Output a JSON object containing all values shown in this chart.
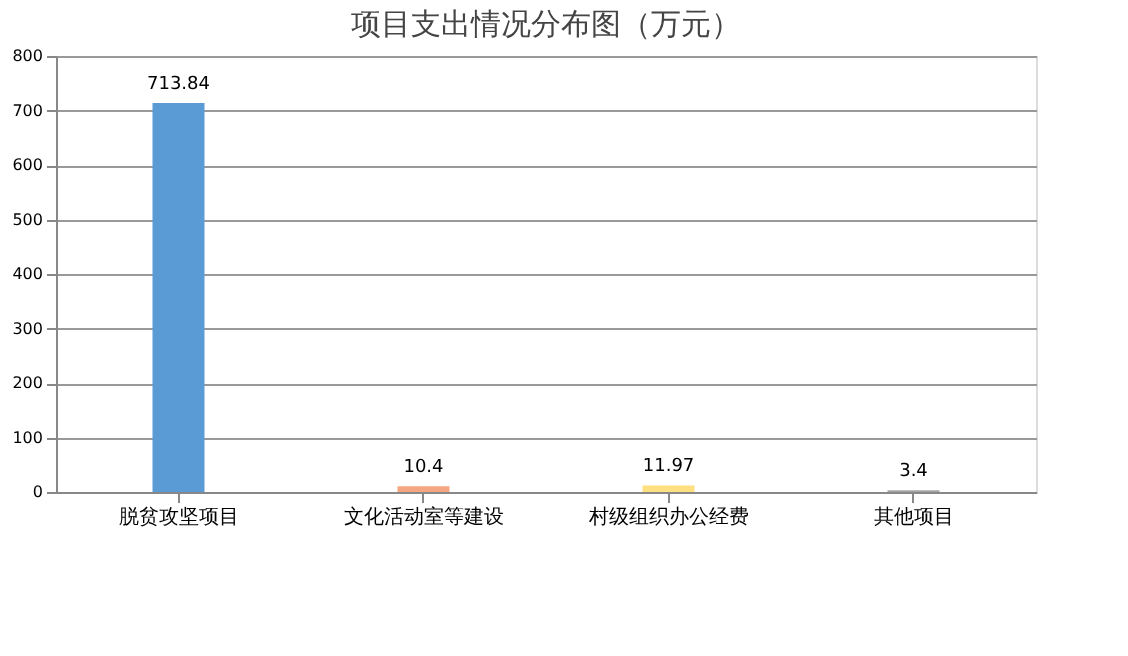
{
  "chart_data": {
    "type": "bar",
    "title": "项目支出情况分布图（万元）",
    "categories": [
      "脱贫攻坚项目",
      "文化活动室等建设",
      "村级组织办公经费",
      "其他项目"
    ],
    "values": [
      713.84,
      10.4,
      11.97,
      3.4
    ],
    "colors": [
      "#5b9bd5",
      "#f4a582",
      "#ffe080",
      "#a5a5a5"
    ],
    "ylim": [
      0,
      800
    ],
    "yticks": [
      0,
      100,
      200,
      300,
      400,
      500,
      600,
      700,
      800
    ],
    "grid": "y",
    "data_labels": true
  }
}
